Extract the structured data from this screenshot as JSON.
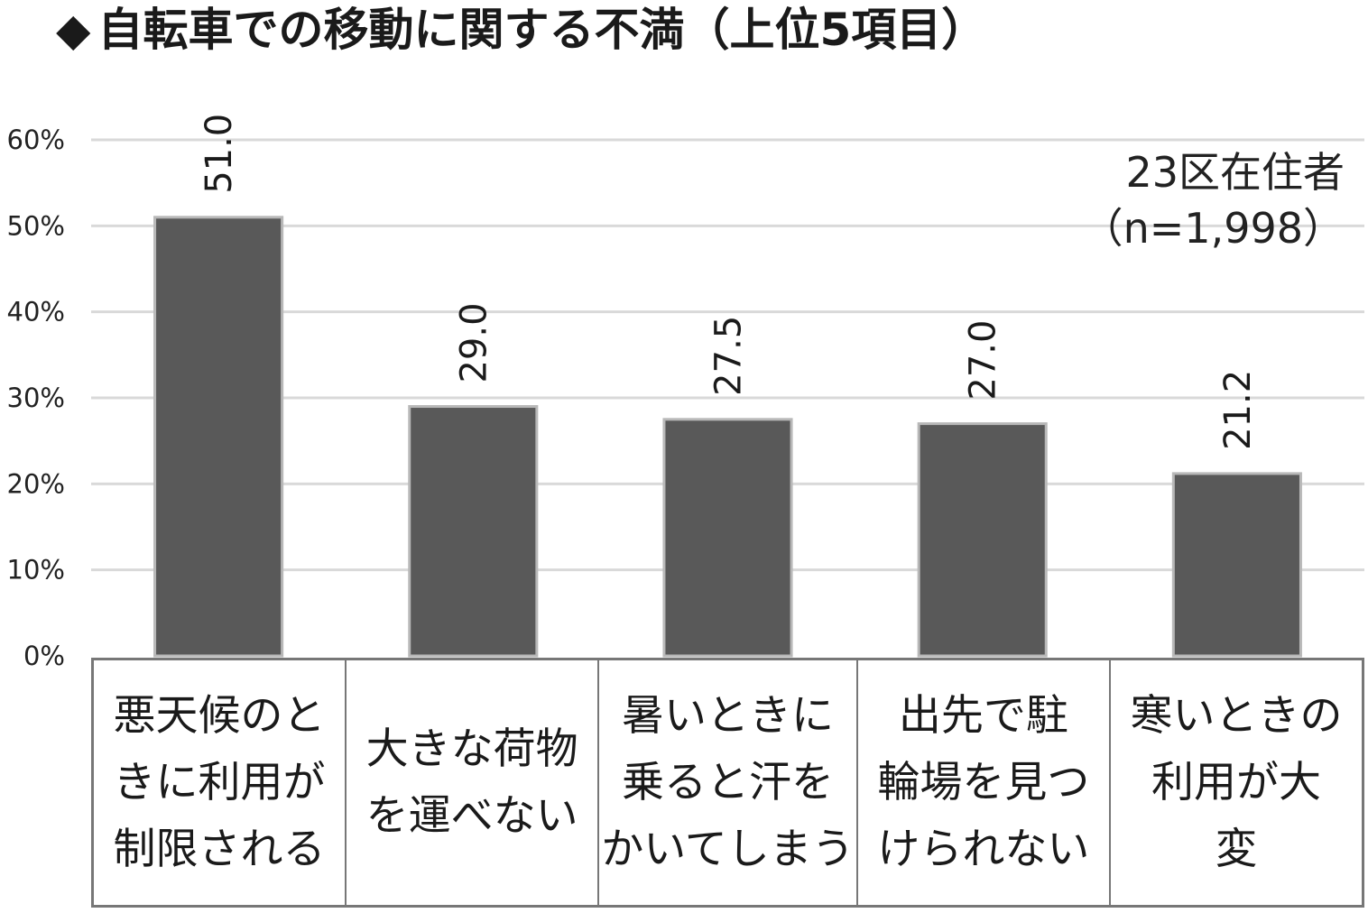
{
  "title": {
    "marker": "◆",
    "text": "自転車での移動に関する不満（上位5項目）"
  },
  "note": {
    "line1": "23区在住者",
    "line2": "（n=1,998）"
  },
  "chart_data": {
    "type": "bar",
    "title": "自転車での移動に関する不満（上位5項目）",
    "categories": [
      [
        "悪天候のと",
        "きに利用が",
        "制限される"
      ],
      [
        "大きな荷物",
        "を運べない"
      ],
      [
        "暑いときに",
        "乗ると汗を",
        "かいてしまう"
      ],
      [
        "出先で駐",
        "輪場を見つ",
        "けられない"
      ],
      [
        "寒いときの",
        "利用が大",
        "変"
      ]
    ],
    "values": [
      51.0,
      29.0,
      27.5,
      27.0,
      21.2
    ],
    "value_labels": [
      "51.0",
      "29.0",
      "27.5",
      "27.0",
      "21.2"
    ],
    "yticks": [
      "0%",
      "10%",
      "20%",
      "30%",
      "40%",
      "50%",
      "60%"
    ],
    "ylim": [
      0,
      60
    ],
    "grid": true,
    "colors": {
      "bar": "#595959",
      "bar_border": "#b8b8b8",
      "grid": "#d9d9d9"
    }
  }
}
